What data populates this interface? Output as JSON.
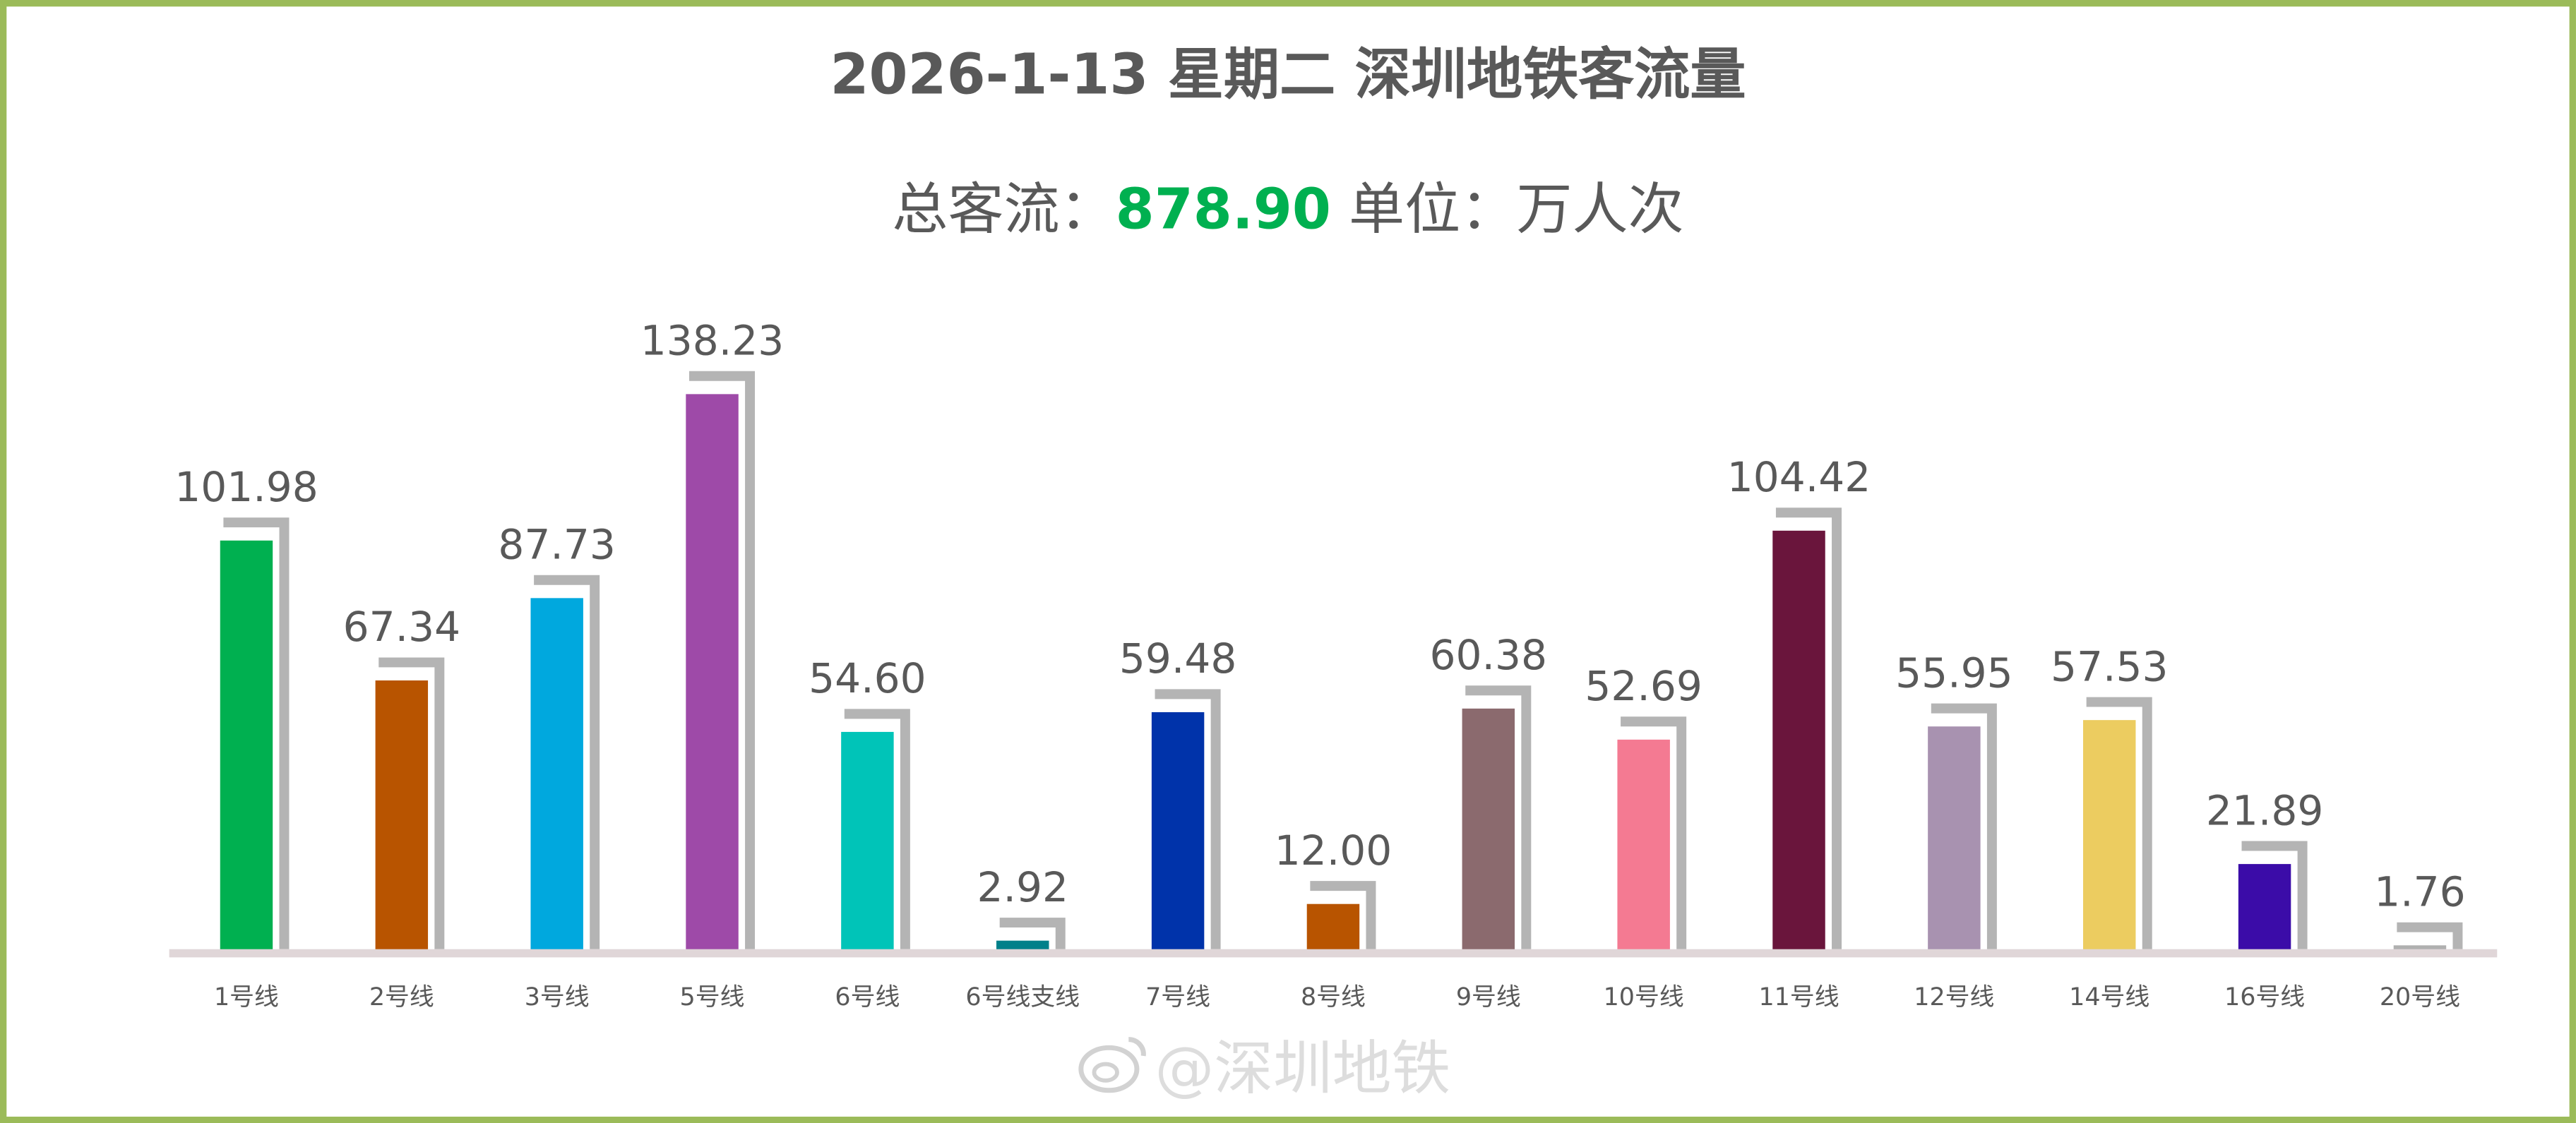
{
  "chart_data": {
    "type": "bar",
    "title": "2026-1-13 星期二 深圳地铁客流量",
    "subtitle": {
      "prefix": "总客流：",
      "total": "878.90",
      "unit": " 单位：万人次"
    },
    "categories": [
      "1号线",
      "2号线",
      "3号线",
      "5号线",
      "6号线",
      "6号线支线",
      "7号线",
      "8号线",
      "9号线",
      "10号线",
      "11号线",
      "12号线",
      "14号线",
      "16号线",
      "20号线"
    ],
    "values": [
      101.98,
      67.34,
      87.73,
      138.23,
      54.6,
      2.92,
      59.48,
      12.0,
      60.38,
      52.69,
      104.42,
      55.95,
      57.53,
      21.89,
      1.76
    ],
    "labels": [
      "101.98",
      "67.34",
      "87.73",
      "138.23",
      "54.60",
      "2.92",
      "59.48",
      "12.00",
      "60.38",
      "52.69",
      "104.42",
      "55.95",
      "57.53",
      "21.89",
      "1.76"
    ],
    "colors": [
      "#00b050",
      "#b85400",
      "#00a8de",
      "#9e4aa8",
      "#00c4b8",
      "#00808a",
      "#0033aa",
      "#b85400",
      "#8b6a6e",
      "#f47a92",
      "#6a153c",
      "#a892b0",
      "#eccc60",
      "#3b0ca8",
      "#b0b0b0"
    ],
    "ylim": [
      0,
      140
    ],
    "grid": false,
    "legend": "none",
    "total_color": "#00b050"
  },
  "watermark": "@深圳地铁"
}
